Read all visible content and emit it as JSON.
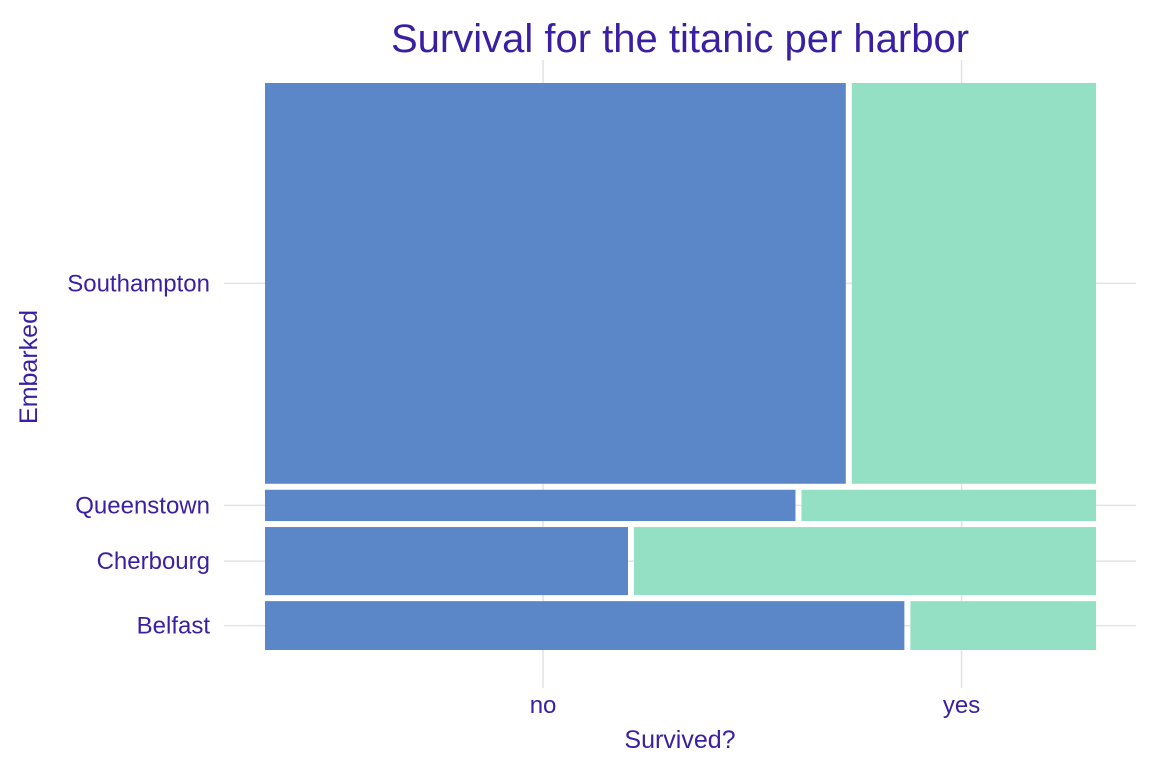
{
  "chart_data": {
    "type": "mosaic",
    "title": "Survival for the titanic per harbor",
    "xlabel": "Survived?",
    "ylabel": "Embarked",
    "x_categories": [
      "no",
      "yes"
    ],
    "y_categories": [
      "Belfast",
      "Cherbourg",
      "Queenstown",
      "Southampton"
    ],
    "row_share": {
      "Belfast": 0.089,
      "Cherbourg": 0.124,
      "Queenstown": 0.057,
      "Southampton": 0.73
    },
    "survived_yes_share": {
      "Belfast": 0.225,
      "Cherbourg": 0.56,
      "Queenstown": 0.357,
      "Southampton": 0.296
    },
    "grid": true,
    "legend": "none",
    "colors": {
      "no": "#5b87c8",
      "yes": "#94e0c4",
      "text": "#3a1fa3"
    }
  }
}
